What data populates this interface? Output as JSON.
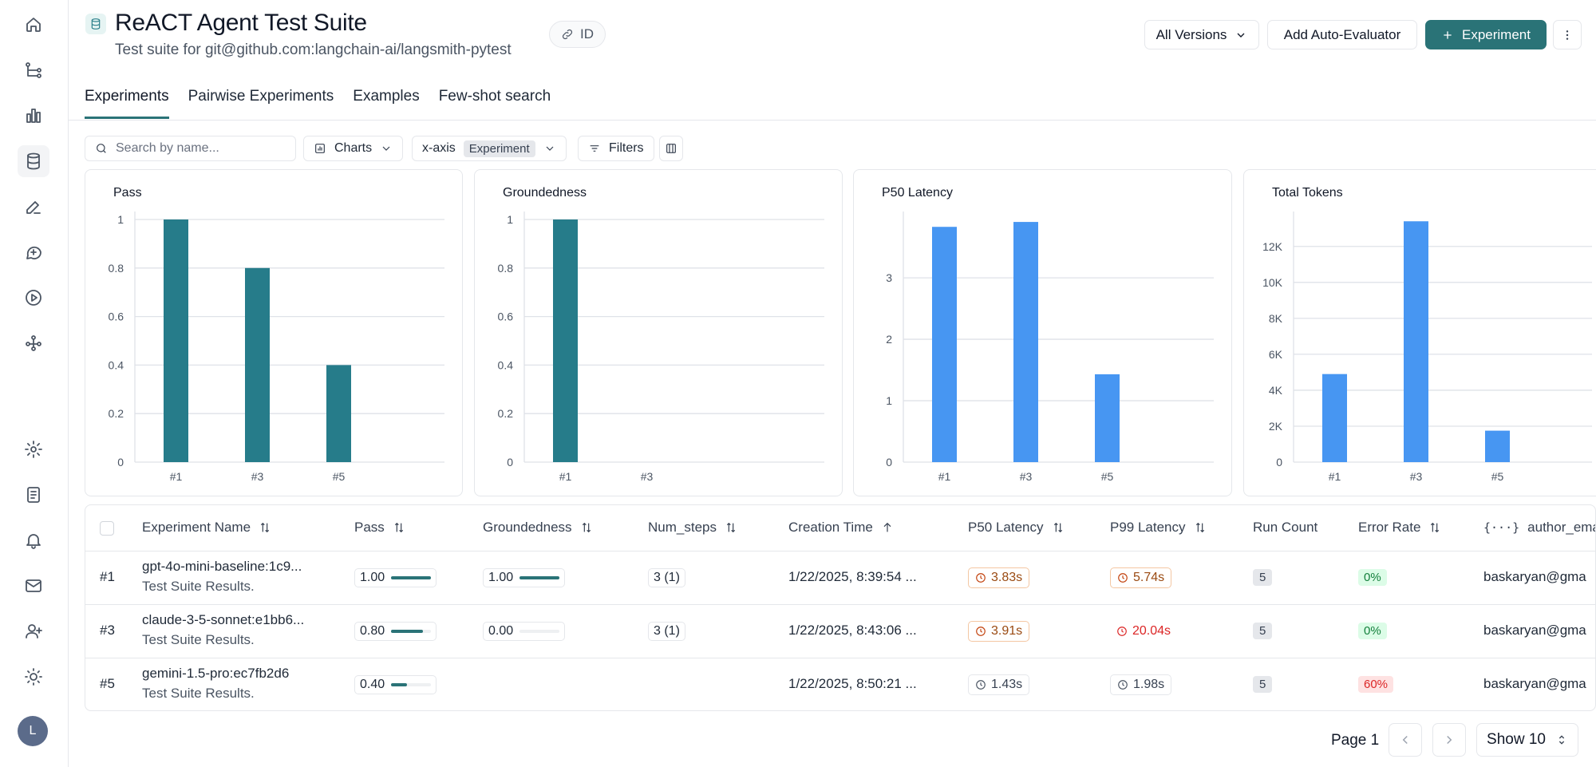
{
  "sidebar": {
    "items": [
      {
        "name": "home-icon"
      },
      {
        "name": "tracing-icon"
      },
      {
        "name": "dashboards-icon"
      },
      {
        "name": "datasets-icon"
      },
      {
        "name": "annotation-icon"
      },
      {
        "name": "prompts-icon"
      },
      {
        "name": "playground-icon"
      },
      {
        "name": "deployments-icon"
      },
      {
        "name": "settings-icon"
      },
      {
        "name": "docs-icon"
      },
      {
        "name": "notifications-icon"
      },
      {
        "name": "mail-icon"
      },
      {
        "name": "invite-user-icon"
      },
      {
        "name": "theme-icon"
      }
    ],
    "avatar_initial": "L"
  },
  "header": {
    "title": "ReACT Agent Test Suite",
    "subtitle": "Test suite for git@github.com:langchain-ai/langsmith-pytest",
    "id_label": "ID",
    "versions_label": "All Versions",
    "auto_evaluator_label": "Add Auto-Evaluator",
    "experiment_label": "Experiment"
  },
  "tabs": [
    {
      "label": "Experiments",
      "active": true
    },
    {
      "label": "Pairwise Experiments",
      "active": false
    },
    {
      "label": "Examples",
      "active": false
    },
    {
      "label": "Few-shot search",
      "active": false
    }
  ],
  "toolbar": {
    "search_placeholder": "Search by name...",
    "charts_label": "Charts",
    "xaxis_label": "x-axis",
    "xaxis_value": "Experiment",
    "filters_label": "Filters"
  },
  "colors": {
    "accent": "#2a7377",
    "teal_bar": "#267c8a",
    "blue_bar": "#4796f2",
    "grid": "#dfe2e8"
  },
  "chart_data": [
    {
      "type": "bar",
      "title": "Pass",
      "categories": [
        "#1",
        "#3",
        "#5"
      ],
      "values": [
        1.0,
        0.8,
        0.4
      ],
      "ylim": [
        0,
        1
      ],
      "yticks": [
        0,
        0.2,
        0.4,
        0.6,
        0.8,
        1
      ],
      "ytick_labels": [
        "0",
        "0.2",
        "0.4",
        "0.6",
        "0.8",
        "1"
      ],
      "color": "#267c8a"
    },
    {
      "type": "bar",
      "title": "Groundedness",
      "categories": [
        "#1",
        "#3"
      ],
      "values": [
        1.0,
        0.0
      ],
      "ylim": [
        0,
        1
      ],
      "yticks": [
        0,
        0.2,
        0.4,
        0.6,
        0.8,
        1
      ],
      "ytick_labels": [
        "0",
        "0.2",
        "0.4",
        "0.6",
        "0.8",
        "1"
      ],
      "color": "#267c8a"
    },
    {
      "type": "bar",
      "title": "P50 Latency",
      "categories": [
        "#1",
        "#3",
        "#5"
      ],
      "values": [
        3.83,
        3.91,
        1.43
      ],
      "ylim": [
        0,
        3.95
      ],
      "yticks": [
        0,
        1,
        2,
        3
      ],
      "ytick_labels": [
        "0",
        "1",
        "2",
        "3"
      ],
      "color": "#4796f2"
    },
    {
      "type": "bar",
      "title": "Total Tokens",
      "categories": [
        "#1",
        "#3",
        "#5"
      ],
      "values": [
        4900,
        13400,
        1750
      ],
      "ylim": [
        0,
        13500
      ],
      "yticks": [
        0,
        2000,
        4000,
        6000,
        8000,
        10000,
        12000
      ],
      "ytick_labels": [
        "0",
        "2K",
        "4K",
        "6K",
        "8K",
        "10K",
        "12K"
      ],
      "color": "#4796f2"
    }
  ],
  "table": {
    "headers": {
      "experiment_name": "Experiment Name",
      "pass": "Pass",
      "groundedness": "Groundedness",
      "num_steps": "Num_steps",
      "creation_time": "Creation Time",
      "p50_latency": "P50 Latency",
      "p99_latency": "P99 Latency",
      "run_count": "Run Count",
      "error_rate": "Error Rate",
      "author_email": "author_ema"
    },
    "rows": [
      {
        "index": "#1",
        "name": "gpt-4o-mini-baseline:1c9...",
        "description": "Test Suite Results.",
        "pass": "1.00",
        "pass_fraction": 1.0,
        "groundedness": "1.00",
        "groundedness_fraction": 1.0,
        "num_steps": "3 (1)",
        "creation_time": "1/22/2025, 8:39:54 ...",
        "p50": "3.83s",
        "p50_status": "warn",
        "p99": "5.74s",
        "p99_status": "warn",
        "run_count": "5",
        "error_rate": "0%",
        "error_status": "ok",
        "author": "baskaryan@gma"
      },
      {
        "index": "#3",
        "name": "claude-3-5-sonnet:e1bb6...",
        "description": "Test Suite Results.",
        "pass": "0.80",
        "pass_fraction": 0.8,
        "groundedness": "0.00",
        "groundedness_fraction": 0.0,
        "num_steps": "3 (1)",
        "creation_time": "1/22/2025, 8:43:06 ...",
        "p50": "3.91s",
        "p50_status": "warn",
        "p99": "20.04s",
        "p99_status": "bad",
        "run_count": "5",
        "error_rate": "0%",
        "error_status": "ok",
        "author": "baskaryan@gma"
      },
      {
        "index": "#5",
        "name": "gemini-1.5-pro:ec7fb2d6",
        "description": "Test Suite Results.",
        "pass": "0.40",
        "pass_fraction": 0.4,
        "groundedness": "",
        "groundedness_fraction": null,
        "num_steps": "",
        "creation_time": "1/22/2025, 8:50:21 ...",
        "p50": "1.43s",
        "p50_status": "ok",
        "p99": "1.98s",
        "p99_status": "ok",
        "run_count": "5",
        "error_rate": "60%",
        "error_status": "bad",
        "author": "baskaryan@gma"
      }
    ]
  },
  "pagination": {
    "page_label": "Page 1",
    "show_label": "Show 10"
  }
}
